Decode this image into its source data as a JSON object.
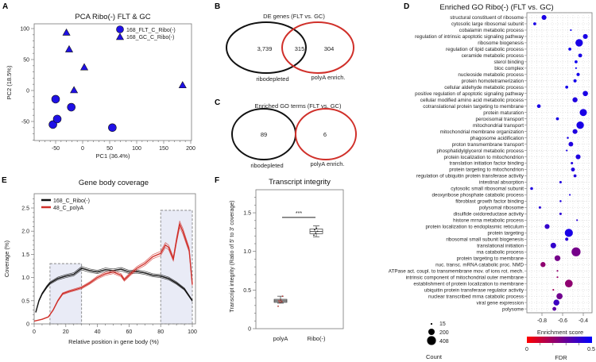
{
  "panel_labels": {
    "a": "A",
    "b": "B",
    "c": "C",
    "d": "D",
    "e": "E",
    "f": "F"
  },
  "colors": {
    "blue": "#1f10e6",
    "red": "#d0302a",
    "black": "#111111",
    "shade": "#e9ebf6"
  },
  "chart_data": {
    "pca": {
      "type": "scatter",
      "title": "PCA Ribo(-) FLT & GC",
      "xlabel": "PC1 (36.4%)",
      "ylabel": "PC2 (18.5%)",
      "xlim": [
        -90,
        202
      ],
      "ylim": [
        -81,
        108
      ],
      "xticks": [
        "-50",
        "0",
        "50",
        "100",
        "150",
        "200"
      ],
      "yticks": [
        "-50",
        "0",
        "50",
        "100"
      ],
      "legend_position": "top-right",
      "series": [
        {
          "name": "168_FLT_C_Ribo(-)",
          "marker": "circle",
          "points": [
            [
              -55,
              -55
            ],
            [
              -47,
              -46
            ],
            [
              -50,
              -14
            ],
            [
              -21,
              -27
            ],
            [
              55,
              -60
            ]
          ]
        },
        {
          "name": "168_GC_C_Ribo(-)",
          "marker": "triangle",
          "points": [
            [
              -30,
              93
            ],
            [
              -25,
              66
            ],
            [
              3,
              37
            ],
            [
              -16,
              0
            ],
            [
              185,
              8
            ]
          ]
        }
      ]
    },
    "venn_de": {
      "type": "venn",
      "title": "DE genes (FLT vs. GC)",
      "left_only": "3,739",
      "overlap": "315",
      "right_only": "304",
      "left_label": "ribodepleted",
      "right_label": "polyA enrich."
    },
    "venn_go": {
      "type": "venn",
      "title": "Enriched GO terms (FLT vs. GC)",
      "left_only": "89",
      "right_only": "6",
      "left_label": "ribodepleted",
      "right_label": "polyA enrich."
    },
    "go_dot": {
      "type": "scatter",
      "title": "Enriched GO Ribo(-) (FLT vs. GC)",
      "xlabel": "Enrichment score",
      "xlim": [
        -0.94,
        -0.32
      ],
      "xticks": [
        "-0.8",
        "-0.6",
        "-0.4"
      ],
      "size_legend_title": "Count",
      "size_legend": [
        "15",
        "200",
        "408"
      ],
      "color_legend_title": "FDR",
      "color_range": [
        "0",
        "0.5"
      ],
      "terms": [
        {
          "term": "structural constituent of ribosome",
          "score": -0.78,
          "count": 120,
          "fdr": 0.45
        },
        {
          "term": "cytosolic large ribosomal subunit",
          "score": -0.87,
          "count": 45,
          "fdr": 0.45
        },
        {
          "term": "cobalamin metabolic process",
          "score": -0.52,
          "count": 15,
          "fdr": 0.47
        },
        {
          "term": "regulation of intrinsic apoptotic signaling pathway",
          "score": -0.38,
          "count": 120,
          "fdr": 0.45
        },
        {
          "term": "ribosome biogenesis",
          "score": -0.44,
          "count": 280,
          "fdr": 0.45
        },
        {
          "term": "regulation of lipid catabolic process",
          "score": -0.53,
          "count": 45,
          "fdr": 0.47
        },
        {
          "term": "ceramide metabolic process",
          "score": -0.43,
          "count": 75,
          "fdr": 0.45
        },
        {
          "term": "sterol binding",
          "score": -0.47,
          "count": 45,
          "fdr": 0.47
        },
        {
          "term": "bloc complex",
          "score": -0.47,
          "count": 15,
          "fdr": 0.47
        },
        {
          "term": "nucleoside metabolic process",
          "score": -0.45,
          "count": 55,
          "fdr": 0.46
        },
        {
          "term": "protein homotetramerization",
          "score": -0.48,
          "count": 55,
          "fdr": 0.46
        },
        {
          "term": "cellular aldehyde metabolic process",
          "score": -0.56,
          "count": 45,
          "fdr": 0.46
        },
        {
          "term": "positive regulation of apoptotic signaling pathway",
          "score": -0.38,
          "count": 140,
          "fdr": 0.45
        },
        {
          "term": "cellular modified amino acid metabolic process",
          "score": -0.48,
          "count": 130,
          "fdr": 0.44
        },
        {
          "term": "cotranslational protein targeting to membrane",
          "score": -0.83,
          "count": 70,
          "fdr": 0.45
        },
        {
          "term": "protein maturation",
          "score": -0.4,
          "count": 260,
          "fdr": 0.45
        },
        {
          "term": "peroxisomal transport",
          "score": -0.65,
          "count": 45,
          "fdr": 0.45
        },
        {
          "term": "mitochondrial transport",
          "score": -0.43,
          "count": 280,
          "fdr": 0.45
        },
        {
          "term": "mitochondrial membrane organization",
          "score": -0.48,
          "count": 120,
          "fdr": 0.44
        },
        {
          "term": "phagosome acidification",
          "score": -0.55,
          "count": 20,
          "fdr": 0.45
        },
        {
          "term": "proton transmembrane transport",
          "score": -0.52,
          "count": 110,
          "fdr": 0.44
        },
        {
          "term": "phosphatidylglycerol metabolic process",
          "score": -0.56,
          "count": 15,
          "fdr": 0.45
        },
        {
          "term": "protein localization to mitochondrion",
          "score": -0.45,
          "count": 120,
          "fdr": 0.44
        },
        {
          "term": "translation initiation factor binding",
          "score": -0.51,
          "count": 30,
          "fdr": 0.44
        },
        {
          "term": "protein targeting to mitochondrion",
          "score": -0.5,
          "count": 75,
          "fdr": 0.44
        },
        {
          "term": "regulation of ubiquitin protein transferase activity",
          "score": -0.48,
          "count": 45,
          "fdr": 0.43
        },
        {
          "term": "intestinal absorption",
          "score": -0.62,
          "count": 30,
          "fdr": 0.44
        },
        {
          "term": "cytosolic small ribosomal subunit",
          "score": -0.9,
          "count": 40,
          "fdr": 0.44
        },
        {
          "term": "deoxyribose phosphate catabolic process",
          "score": -0.53,
          "count": 15,
          "fdr": 0.44
        },
        {
          "term": "fibroblast growth factor binding",
          "score": -0.62,
          "count": 20,
          "fdr": 0.44
        },
        {
          "term": "polysomal ribosome",
          "score": -0.82,
          "count": 30,
          "fdr": 0.42
        },
        {
          "term": "disulfide oxidoreductase activity",
          "score": -0.62,
          "count": 30,
          "fdr": 0.42
        },
        {
          "term": "histone mrna metabolic process",
          "score": -0.46,
          "count": 15,
          "fdr": 0.42
        },
        {
          "term": "protein localization to endoplasmic reticulum",
          "score": -0.75,
          "count": 120,
          "fdr": 0.4
        },
        {
          "term": "protein targeting",
          "score": -0.54,
          "count": 330,
          "fdr": 0.45
        },
        {
          "term": "ribosomal small subunit biogenesis",
          "score": -0.56,
          "count": 55,
          "fdr": 0.42
        },
        {
          "term": "translational initiation",
          "score": -0.69,
          "count": 160,
          "fdr": 0.4
        },
        {
          "term": "rna catabolic process",
          "score": -0.47,
          "count": 408,
          "fdr": 0.27
        },
        {
          "term": "protein targeting to membrane",
          "score": -0.65,
          "count": 170,
          "fdr": 0.27
        },
        {
          "term": "nuc. transc. mRNA catabolic proc. NMD",
          "score": -0.79,
          "count": 130,
          "fdr": 0.22
        },
        {
          "term": "ATPase act. coupl. to transmembrane mov. of ions rot. mech.",
          "score": -0.65,
          "count": 15,
          "fdr": 0.22
        },
        {
          "term": "intrinsic component of mitochondrial outer membrane",
          "score": -0.65,
          "count": 15,
          "fdr": 0.2
        },
        {
          "term": "establishment of protein localization to membrane",
          "score": -0.54,
          "count": 300,
          "fdr": 0.22
        },
        {
          "term": "ubiquitin protein transferase regulator activity",
          "score": -0.69,
          "count": 15,
          "fdr": 0.18
        },
        {
          "term": "nuclear transcribed mrna catabolic process",
          "score": -0.63,
          "count": 190,
          "fdr": 0.28
        },
        {
          "term": "viral gene expression",
          "score": -0.66,
          "count": 180,
          "fdr": 0.38
        },
        {
          "term": "polysome",
          "score": -0.68,
          "count": 75,
          "fdr": 0.32
        }
      ]
    },
    "coverage": {
      "type": "line",
      "title": "Gene body coverage",
      "xlabel": "Relative position in gene body (%)",
      "ylabel": "Coverage (%)",
      "xlim": [
        0,
        100
      ],
      "ylim": [
        0,
        2.8
      ],
      "xticks": [
        "0",
        "20",
        "40",
        "60",
        "80",
        "100"
      ],
      "yticks": [
        "0",
        "0.5",
        "1.0",
        "1.5",
        "2.0",
        "2.5"
      ],
      "legend_position": "top-left",
      "highlight_regions": [
        {
          "x": [
            10,
            30
          ],
          "y": [
            0,
            1.3
          ]
        },
        {
          "x": [
            80,
            100
          ],
          "y": [
            0,
            2.45
          ]
        }
      ],
      "series": [
        {
          "name": "168_C_Ribo(-)",
          "color": "#111111",
          "x": [
            1,
            3,
            5,
            8,
            10,
            15,
            20,
            25,
            30,
            35,
            40,
            45,
            50,
            55,
            60,
            65,
            70,
            75,
            80,
            85,
            90,
            95,
            100
          ],
          "y": [
            0.25,
            0.5,
            0.65,
            0.8,
            0.88,
            0.98,
            1.03,
            1.07,
            1.2,
            1.15,
            1.12,
            1.17,
            1.15,
            1.18,
            1.12,
            1.13,
            1.1,
            1.05,
            1.03,
            0.98,
            0.88,
            0.75,
            0.5
          ]
        },
        {
          "name": "48_C_polyA",
          "color": "#d0302a",
          "x": [
            0,
            5,
            9,
            12,
            15,
            18,
            22,
            25,
            30,
            35,
            40,
            45,
            50,
            55,
            57,
            60,
            65,
            70,
            75,
            80,
            83,
            85,
            88,
            90,
            92,
            94,
            96,
            98,
            100
          ],
          "y": [
            0.06,
            0.1,
            0.15,
            0.3,
            0.5,
            0.65,
            0.7,
            0.73,
            0.78,
            0.88,
            1.0,
            1.08,
            1.12,
            1.05,
            0.95,
            1.05,
            1.2,
            1.3,
            1.45,
            1.52,
            1.7,
            1.65,
            1.4,
            1.8,
            2.15,
            2.0,
            1.8,
            1.6,
            0.85
          ]
        }
      ]
    },
    "integrity": {
      "type": "box",
      "title": "Transcript integrity",
      "ylabel": "Transcript integrity (Ratio of 5' to 3' coverage)",
      "ylim": [
        0,
        1.8
      ],
      "yticks": [
        "0",
        "0.5",
        "1.0",
        "1.5"
      ],
      "categories": [
        "polyA",
        "Ribo(-)"
      ],
      "boxes": [
        {
          "q1": 0.34,
          "median": 0.36,
          "q3": 0.38,
          "whisker_low": 0.33,
          "whisker_high": 0.42,
          "points": [
            0.29,
            0.34,
            0.35,
            0.36,
            0.37,
            0.42
          ],
          "color": "#b0302a"
        },
        {
          "q1": 1.23,
          "median": 1.26,
          "q3": 1.29,
          "whisker_low": 1.19,
          "whisker_high": 1.33,
          "points": [
            1.21,
            1.24,
            1.26,
            1.28,
            1.3
          ],
          "color": "#222222"
        }
      ],
      "significance": {
        "label": "***",
        "y": 1.44
      }
    }
  }
}
